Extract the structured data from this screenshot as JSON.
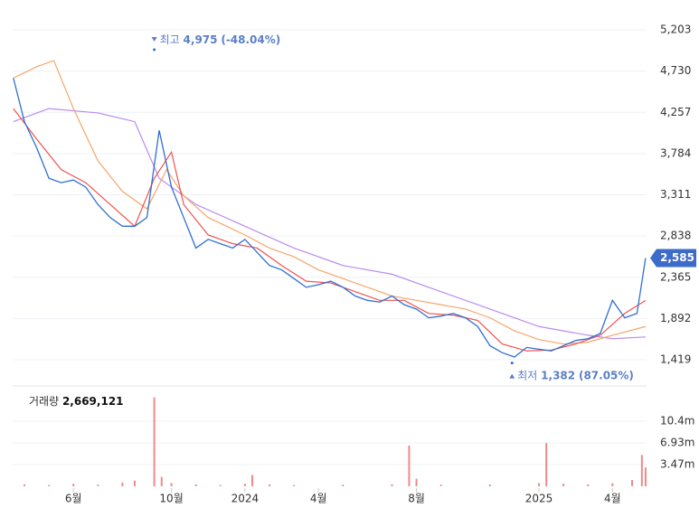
{
  "chart_data": [
    {
      "type": "line",
      "xlim": [
        2.52,
        28.39
      ],
      "ylim": [
        1191,
        5338
      ],
      "xticks": [
        {
          "value": 5,
          "label": "6월"
        },
        {
          "value": 9,
          "label": "10월"
        },
        {
          "value": 12,
          "label": "2024"
        },
        {
          "value": 15,
          "label": "4월"
        },
        {
          "value": 19,
          "label": "8월"
        },
        {
          "value": 24,
          "label": "2025"
        },
        {
          "value": 27,
          "label": "4월"
        }
      ],
      "yticks": [
        {
          "value": 5203,
          "label": "5,203"
        },
        {
          "value": 4730,
          "label": "4,730"
        },
        {
          "value": 4257,
          "label": "4,257"
        },
        {
          "value": 3784,
          "label": "3,784"
        },
        {
          "value": 3311,
          "label": "3,311"
        },
        {
          "value": 2838,
          "label": "2,838"
        },
        {
          "value": 2365,
          "label": "2,365"
        },
        {
          "value": 1892,
          "label": "1,892"
        },
        {
          "value": 1419,
          "label": "1,419"
        }
      ],
      "grid": true,
      "series": [
        {
          "color": "#2f6fd0",
          "x": [
            2.55,
            3.0,
            3.5,
            4.0,
            4.5,
            5.0,
            5.5,
            6.0,
            6.5,
            7.0,
            7.5,
            8.0,
            8.5,
            9.0,
            9.5,
            10.0,
            10.5,
            11.0,
            11.5,
            12.0,
            12.5,
            13.0,
            13.5,
            14.0,
            14.5,
            15.0,
            15.5,
            16.0,
            16.5,
            17.0,
            17.5,
            18.0,
            18.5,
            19.0,
            19.5,
            20.0,
            20.5,
            21.0,
            21.5,
            22.0,
            22.5,
            23.0,
            23.5,
            24.0,
            24.5,
            25.0,
            25.5,
            26.0,
            26.5,
            27.0,
            27.5,
            28.0,
            28.35
          ],
          "values": [
            4650,
            4150,
            3850,
            3500,
            3450,
            3480,
            3400,
            3200,
            3050,
            2950,
            2950,
            3050,
            4050,
            3400,
            3050,
            2700,
            2800,
            2750,
            2700,
            2800,
            2650,
            2500,
            2450,
            2350,
            2250,
            2280,
            2320,
            2250,
            2150,
            2100,
            2080,
            2150,
            2050,
            2000,
            1900,
            1920,
            1950,
            1900,
            1800,
            1580,
            1500,
            1450,
            1560,
            1540,
            1520,
            1580,
            1640,
            1660,
            1720,
            2100,
            1900,
            1950,
            2585
          ]
        },
        {
          "color": "#ef5350",
          "x": [
            2.55,
            3.5,
            4.5,
            5.5,
            6.5,
            7.5,
            8.3,
            9,
            9.5,
            10.5,
            11.5,
            12.5,
            13.5,
            14.5,
            15.5,
            16.5,
            17.5,
            18.5,
            19.5,
            20.5,
            21.5,
            22.5,
            23.5,
            24.5,
            25.5,
            26.5,
            27.5,
            28.35
          ],
          "values": [
            4300,
            3950,
            3600,
            3450,
            3200,
            2950,
            3500,
            3800,
            3200,
            2850,
            2750,
            2700,
            2500,
            2320,
            2300,
            2200,
            2100,
            2100,
            1950,
            1930,
            1870,
            1600,
            1520,
            1530,
            1600,
            1700,
            1950,
            2100
          ]
        },
        {
          "color": "#f5a66b",
          "x": [
            2.55,
            3.5,
            4.2,
            5,
            6,
            7,
            8,
            8.8,
            9.5,
            10.5,
            12,
            13,
            14,
            15,
            16,
            17,
            18,
            19,
            20,
            21,
            22,
            23,
            24,
            25,
            26,
            27,
            28.35
          ],
          "values": [
            4650,
            4780,
            4850,
            4300,
            3700,
            3350,
            3150,
            3600,
            3300,
            3050,
            2850,
            2700,
            2600,
            2450,
            2350,
            2250,
            2150,
            2100,
            2050,
            2000,
            1900,
            1750,
            1650,
            1600,
            1620,
            1700,
            1800
          ]
        },
        {
          "color": "#b98cf0",
          "x": [
            2.55,
            4,
            6,
            7.5,
            8.5,
            10,
            12,
            14,
            16,
            18,
            20,
            22,
            24,
            26,
            27,
            28.35
          ],
          "values": [
            4150,
            4300,
            4250,
            4150,
            3500,
            3200,
            2950,
            2700,
            2500,
            2400,
            2200,
            2000,
            1800,
            1700,
            1660,
            1680
          ]
        }
      ],
      "high": {
        "x": 8.3,
        "value": 4975,
        "value_label": "4,975",
        "label": "최고",
        "change": "(-48.04%)"
      },
      "low": {
        "x": 22.9,
        "value": 1382,
        "value_label": "1,382",
        "label": "최저",
        "change": "(87.05%)"
      },
      "last": {
        "value": 2585,
        "label": "2,585"
      }
    },
    {
      "type": "bar",
      "title": "거래량",
      "total": {
        "value": 2669121,
        "label": "2,669,121"
      },
      "xlim": [
        2.52,
        28.39
      ],
      "ylim": [
        0,
        15300000
      ],
      "yticks": [
        {
          "value": 10400000,
          "label": "10.4m"
        },
        {
          "value": 6930000,
          "label": "6.93m"
        },
        {
          "value": 3470000,
          "label": "3.47m"
        }
      ],
      "color": "#f08a8a",
      "x": [
        3,
        4,
        5,
        6,
        7,
        7.5,
        8.3,
        8.6,
        9,
        10,
        11,
        12,
        12.3,
        13,
        14,
        16,
        18,
        18.7,
        19,
        20,
        22,
        24,
        24.3,
        25,
        26,
        27,
        27.8,
        28.2,
        28.35
      ],
      "values": [
        300000,
        200000,
        400000,
        250000,
        600000,
        900000,
        14200000,
        1500000,
        500000,
        300000,
        200000,
        400000,
        1800000,
        300000,
        200000,
        250000,
        300000,
        6500000,
        1200000,
        250000,
        300000,
        500000,
        6900000,
        400000,
        300000,
        500000,
        1000000,
        5000000,
        3000000
      ]
    }
  ]
}
